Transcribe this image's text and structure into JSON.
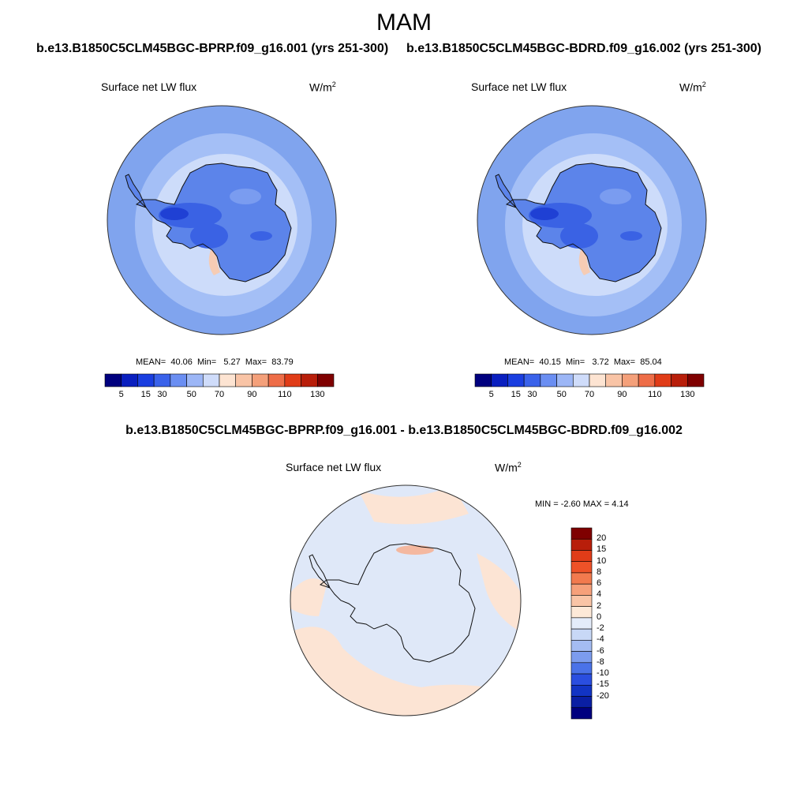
{
  "title": "MAM",
  "panels": [
    {
      "case": "b.e13.B1850C5CLM45BGC-BPRP.f09_g16.001 (yrs 251-300)",
      "variable": "Surface net LW flux",
      "units_base": "W/m",
      "units_exp": "2",
      "stats": {
        "mean_label": "MEAN=",
        "mean": "40.06",
        "min_label": "Min=",
        "min": "5.27",
        "max_label": "Max=",
        "max": "83.79"
      }
    },
    {
      "case": "b.e13.B1850C5CLM45BGC-BDRD.f09_g16.002 (yrs 251-300)",
      "variable": "Surface net LW flux",
      "units_base": "W/m",
      "units_exp": "2",
      "stats": {
        "mean_label": "MEAN=",
        "mean": "40.15",
        "min_label": "Min=",
        "min": "3.72",
        "max_label": "Max=",
        "max": "85.04"
      }
    }
  ],
  "abs_colorbar": {
    "colors": [
      "#00007f",
      "#0a1fbf",
      "#1a3ee0",
      "#3a62ea",
      "#6a8ef2",
      "#9cb6f6",
      "#cfdcfa",
      "#fde4d2",
      "#f9c4a6",
      "#f4a07a",
      "#ee6d48",
      "#e03c18",
      "#b81e0a",
      "#7f0000"
    ],
    "labels": [
      "5",
      "15",
      "30",
      "50",
      "70",
      "90",
      "110",
      "130"
    ]
  },
  "diff": {
    "title": "b.e13.B1850C5CLM45BGC-BPRP.f09_g16.001 - b.e13.B1850C5CLM45BGC-BDRD.f09_g16.002",
    "variable": "Surface net LW flux",
    "units_base": "W/m",
    "units_exp": "2",
    "min_max": "MIN =  -2.60 MAX =   4.14",
    "colors": [
      "#7f0000",
      "#b81e0a",
      "#e03c18",
      "#ee5228",
      "#f27a4e",
      "#f6a07a",
      "#f9c4a6",
      "#fde9d8",
      "#e4ecfa",
      "#c8d8f6",
      "#a4bcf2",
      "#7c9cee",
      "#4a72e8",
      "#2a4ee0",
      "#1234c4",
      "#0a1fa4",
      "#00007f"
    ],
    "labels": [
      "20",
      "15",
      "10",
      "8",
      "6",
      "4",
      "2",
      "0",
      "-2",
      "-4",
      "-6",
      "-8",
      "-10",
      "-15",
      "-20"
    ]
  },
  "map_colors": {
    "ocean_far": "#80a4ee",
    "ocean_mid": "#a4bff6",
    "sea_ice": "#cddcfa",
    "land": "#5c84ea",
    "land_dark": "#3a62e4",
    "land_darker": "#1f40d4",
    "warm": "#f6ccb4",
    "diff_bg": "#dfe8f8",
    "diff_pos": "#fce4d4",
    "diff_pos2": "#f4b8a0"
  }
}
